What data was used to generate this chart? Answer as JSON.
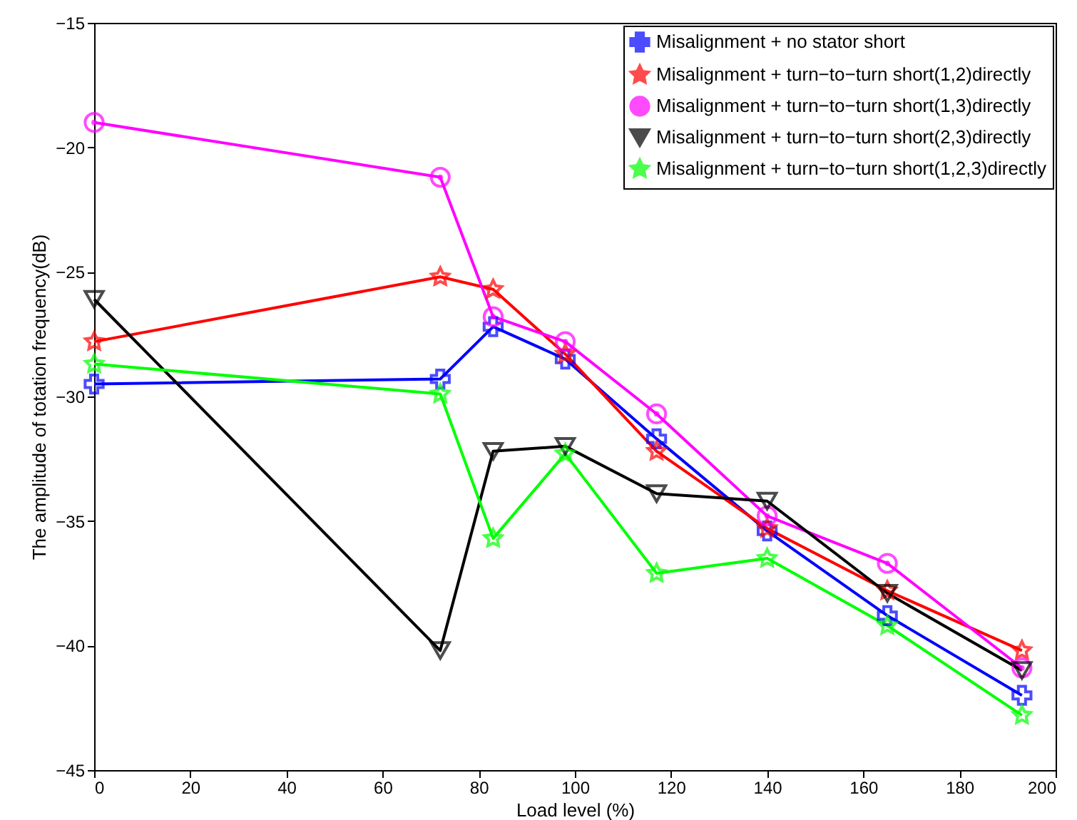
{
  "chart_data": {
    "type": "line",
    "xlabel": "Load level (%)",
    "ylabel": "The amplitude of totation frequency(dB)",
    "x": [
      0,
      72,
      83,
      98,
      117,
      140,
      165,
      193
    ],
    "xlim": [
      0,
      200
    ],
    "xticks": [
      0,
      20,
      40,
      60,
      80,
      100,
      120,
      140,
      160,
      180,
      200
    ],
    "ylim": [
      -45,
      -15
    ],
    "yticks": [
      -45,
      -40,
      -35,
      -30,
      -25,
      -20,
      -15
    ],
    "grid": false,
    "legend": "top right",
    "line_style": "solid",
    "series": [
      {
        "name": "Misalignment + no stator short",
        "color": "#0000ff",
        "marker": "cross",
        "values": [
          -29.5,
          -29.3,
          -27.2,
          -28.5,
          -31.7,
          -35.4,
          -38.8,
          -42.0
        ]
      },
      {
        "name": "Misalignment + turn−to−turn short(1,2)directly",
        "color": "#ff0000",
        "marker": "star",
        "values": [
          -27.8,
          -25.2,
          -25.7,
          -28.3,
          -32.2,
          -35.3,
          -37.8,
          -40.2
        ]
      },
      {
        "name": "Misalignment + turn−to−turn short(1,3)directly",
        "color": "#ff00ff",
        "marker": "circle",
        "values": [
          -19.0,
          -21.2,
          -26.8,
          -27.8,
          -30.7,
          -34.8,
          -36.7,
          -40.9
        ]
      },
      {
        "name": "Misalignment + turn−to−turn short(2,3)directly",
        "color": "#000000",
        "marker": "triangle",
        "values": [
          -26.1,
          -40.2,
          -32.2,
          -32.0,
          -33.9,
          -34.2,
          -37.9,
          -41.0
        ]
      },
      {
        "name": "Misalignment + turn−to−turn short(1,2,3)directly",
        "color": "#00ff00",
        "marker": "star",
        "values": [
          -28.7,
          -29.9,
          -35.7,
          -32.3,
          -37.1,
          -36.5,
          -39.2,
          -42.8
        ]
      }
    ]
  }
}
